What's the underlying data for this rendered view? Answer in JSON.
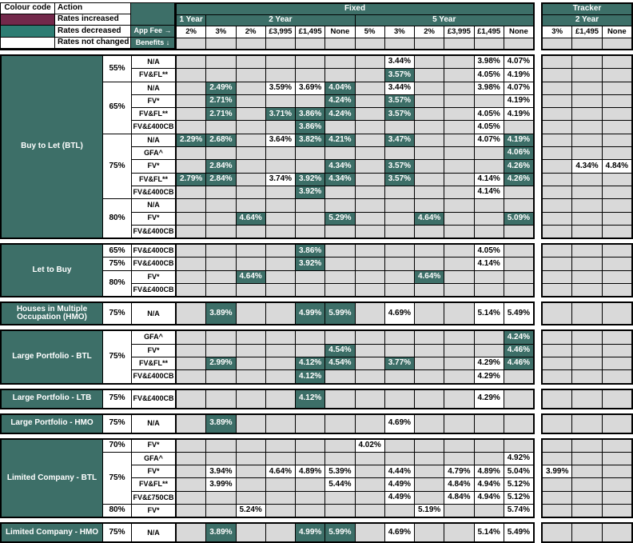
{
  "colors": {
    "increased": "#73294B",
    "decreased_swatch": "#2E7D73",
    "cell_decreased": "#3D6F68",
    "header_teal": "#3D6F68",
    "empty": "#D9D9D9",
    "not_changed": "#FFFFFF",
    "border": "#000000"
  },
  "legend": {
    "col1_header": "Colour code",
    "col2_header": "Action",
    "rows": [
      {
        "swatch": "increased",
        "label": "Rates increased"
      },
      {
        "swatch": "decreased",
        "label": "Rates decreased"
      },
      {
        "swatch": "none",
        "label": "Rates not changed"
      }
    ]
  },
  "header": {
    "app_fee_label": "App Fee →",
    "benefits_label": "Benefits ↓",
    "fixed_label": "Fixed",
    "tracker_label": "Tracker",
    "fixed_terms": [
      {
        "label": "1 Year",
        "span": 1
      },
      {
        "label": "2 Year",
        "span": 5
      },
      {
        "label": "5 Year",
        "span": 6
      }
    ],
    "tracker_terms": [
      {
        "label": "2 Year",
        "span": 3
      }
    ],
    "fixed_fees": [
      "2%",
      "3%",
      "2%",
      "£3,995",
      "£1,495",
      "None",
      "5%",
      "3%",
      "2%",
      "£3,995",
      "£1,495",
      "None"
    ],
    "tracker_fees": [
      "3%",
      "£1,495",
      "None"
    ]
  },
  "cell_states": {
    "d": "rate decreased",
    "n": "rate not changed"
  },
  "sections": [
    {
      "label": "Buy to Let (BTL)",
      "ltv_groups": [
        {
          "ltv": "55%",
          "rows": [
            {
              "benefit": "N/A",
              "cells": [
                [
                  8,
                  "3.44%",
                  "n"
                ],
                [
                  11,
                  "3.98%",
                  "n"
                ],
                [
                  12,
                  "4.07%",
                  "n"
                ]
              ]
            },
            {
              "benefit": "FV&FL**",
              "cells": [
                [
                  8,
                  "3.57%",
                  "d"
                ],
                [
                  11,
                  "4.05%",
                  "n"
                ],
                [
                  12,
                  "4.19%",
                  "n"
                ]
              ]
            }
          ]
        },
        {
          "ltv": "65%",
          "rows": [
            {
              "benefit": "N/A",
              "cells": [
                [
                  2,
                  "2.49%",
                  "d"
                ],
                [
                  4,
                  "3.59%",
                  "n"
                ],
                [
                  5,
                  "3.69%",
                  "n"
                ],
                [
                  6,
                  "4.04%",
                  "d"
                ],
                [
                  8,
                  "3.44%",
                  "n"
                ],
                [
                  11,
                  "3.98%",
                  "n"
                ],
                [
                  12,
                  "4.07%",
                  "n"
                ]
              ]
            },
            {
              "benefit": "FV*",
              "cells": [
                [
                  2,
                  "2.71%",
                  "d"
                ],
                [
                  6,
                  "4.24%",
                  "d"
                ],
                [
                  8,
                  "3.57%",
                  "d"
                ],
                [
                  12,
                  "4.19%",
                  "n"
                ]
              ]
            },
            {
              "benefit": "FV&FL**",
              "cells": [
                [
                  2,
                  "2.71%",
                  "d"
                ],
                [
                  4,
                  "3.71%",
                  "d"
                ],
                [
                  5,
                  "3.86%",
                  "d"
                ],
                [
                  6,
                  "4.24%",
                  "d"
                ],
                [
                  8,
                  "3.57%",
                  "d"
                ],
                [
                  11,
                  "4.05%",
                  "n"
                ],
                [
                  12,
                  "4.19%",
                  "n"
                ]
              ]
            },
            {
              "benefit": "FV&£400CB",
              "cells": [
                [
                  5,
                  "3.86%",
                  "d"
                ],
                [
                  11,
                  "4.05%",
                  "n"
                ]
              ]
            }
          ]
        },
        {
          "ltv": "75%",
          "rows": [
            {
              "benefit": "N/A",
              "cells": [
                [
                  1,
                  "2.29%",
                  "d"
                ],
                [
                  2,
                  "2.68%",
                  "d"
                ],
                [
                  4,
                  "3.64%",
                  "n"
                ],
                [
                  5,
                  "3.82%",
                  "d"
                ],
                [
                  6,
                  "4.21%",
                  "d"
                ],
                [
                  8,
                  "3.47%",
                  "d"
                ],
                [
                  11,
                  "4.07%",
                  "n"
                ],
                [
                  12,
                  "4.19%",
                  "d"
                ]
              ]
            },
            {
              "benefit": "GFA^",
              "cells": [
                [
                  12,
                  "4.06%",
                  "d"
                ]
              ]
            },
            {
              "benefit": "FV*",
              "cells": [
                [
                  2,
                  "2.84%",
                  "d"
                ],
                [
                  6,
                  "4.34%",
                  "d"
                ],
                [
                  8,
                  "3.57%",
                  "d"
                ],
                [
                  12,
                  "4.26%",
                  "d"
                ],
                [
                  14,
                  "4.34%",
                  "n"
                ],
                [
                  15,
                  "4.84%",
                  "n"
                ]
              ]
            },
            {
              "benefit": "FV&FL**",
              "cells": [
                [
                  1,
                  "2.79%",
                  "d"
                ],
                [
                  2,
                  "2.84%",
                  "d"
                ],
                [
                  4,
                  "3.74%",
                  "n"
                ],
                [
                  5,
                  "3.92%",
                  "d"
                ],
                [
                  6,
                  "4.34%",
                  "d"
                ],
                [
                  8,
                  "3.57%",
                  "d"
                ],
                [
                  11,
                  "4.14%",
                  "n"
                ],
                [
                  12,
                  "4.26%",
                  "d"
                ]
              ]
            },
            {
              "benefit": "FV&£400CB",
              "cells": [
                [
                  5,
                  "3.92%",
                  "d"
                ],
                [
                  11,
                  "4.14%",
                  "n"
                ]
              ]
            }
          ]
        },
        {
          "ltv": "80%",
          "rows": [
            {
              "benefit": "N/A",
              "cells": []
            },
            {
              "benefit": "FV*",
              "cells": [
                [
                  3,
                  "4.64%",
                  "d"
                ],
                [
                  6,
                  "5.29%",
                  "d"
                ],
                [
                  9,
                  "4.64%",
                  "d"
                ],
                [
                  12,
                  "5.09%",
                  "d"
                ]
              ]
            },
            {
              "benefit": "FV&£400CB",
              "cells": []
            }
          ]
        }
      ]
    },
    {
      "label": "Let to Buy",
      "ltv_groups": [
        {
          "ltv": "65%",
          "rows": [
            {
              "benefit": "FV&£400CB",
              "cells": [
                [
                  5,
                  "3.86%",
                  "d"
                ],
                [
                  11,
                  "4.05%",
                  "n"
                ]
              ]
            }
          ]
        },
        {
          "ltv": "75%",
          "rows": [
            {
              "benefit": "FV&£400CB",
              "cells": [
                [
                  5,
                  "3.92%",
                  "d"
                ],
                [
                  11,
                  "4.14%",
                  "n"
                ]
              ]
            }
          ]
        },
        {
          "ltv": "80%",
          "rows": [
            {
              "benefit": "FV*",
              "cells": [
                [
                  3,
                  "4.64%",
                  "d"
                ],
                [
                  9,
                  "4.64%",
                  "d"
                ]
              ]
            },
            {
              "benefit": "FV&£400CB",
              "cells": []
            }
          ]
        }
      ]
    },
    {
      "label": "Houses in Multiple Occupation (HMO)",
      "tall_row": true,
      "ltv_groups": [
        {
          "ltv": "75%",
          "rows": [
            {
              "benefit": "N/A",
              "cells": [
                [
                  2,
                  "3.89%",
                  "d"
                ],
                [
                  5,
                  "4.99%",
                  "d"
                ],
                [
                  6,
                  "5.99%",
                  "d"
                ],
                [
                  8,
                  "4.69%",
                  "n"
                ],
                [
                  11,
                  "5.14%",
                  "n"
                ],
                [
                  12,
                  "5.49%",
                  "n"
                ]
              ]
            }
          ]
        }
      ]
    },
    {
      "label": "Large Portfolio - BTL",
      "ltv_groups": [
        {
          "ltv": "75%",
          "rows": [
            {
              "benefit": "GFA^",
              "cells": [
                [
                  12,
                  "4.24%",
                  "d"
                ]
              ]
            },
            {
              "benefit": "FV*",
              "cells": [
                [
                  6,
                  "4.54%",
                  "d"
                ],
                [
                  12,
                  "4.46%",
                  "d"
                ]
              ]
            },
            {
              "benefit": "FV&FL**",
              "cells": [
                [
                  2,
                  "2.99%",
                  "d"
                ],
                [
                  5,
                  "4.12%",
                  "d"
                ],
                [
                  6,
                  "4.54%",
                  "d"
                ],
                [
                  8,
                  "3.77%",
                  "d"
                ],
                [
                  11,
                  "4.29%",
                  "n"
                ],
                [
                  12,
                  "4.46%",
                  "d"
                ]
              ]
            },
            {
              "benefit": "FV&£400CB",
              "cells": [
                [
                  5,
                  "4.12%",
                  "d"
                ],
                [
                  11,
                  "4.29%",
                  "n"
                ]
              ]
            }
          ]
        }
      ]
    },
    {
      "label": "Large Portfolio - LTB",
      "ltv_groups": [
        {
          "ltv": "75%",
          "rows": [
            {
              "benefit": "FV&£400CB",
              "cells": [
                [
                  5,
                  "4.12%",
                  "d"
                ],
                [
                  11,
                  "4.29%",
                  "n"
                ]
              ]
            }
          ]
        }
      ]
    },
    {
      "label": "Large Portfolio - HMO",
      "ltv_groups": [
        {
          "ltv": "75%",
          "rows": [
            {
              "benefit": "N/A",
              "cells": [
                [
                  2,
                  "3.89%",
                  "d"
                ],
                [
                  8,
                  "4.69%",
                  "n"
                ]
              ]
            }
          ]
        }
      ]
    },
    {
      "label": "Limited Company - BTL",
      "ltv_groups": [
        {
          "ltv": "70%",
          "rows": [
            {
              "benefit": "FV*",
              "cells": [
                [
                  7,
                  "4.02%",
                  "n"
                ]
              ]
            }
          ]
        },
        {
          "ltv": "75%",
          "rows": [
            {
              "benefit": "GFA^",
              "cells": [
                [
                  12,
                  "4.92%",
                  "n"
                ]
              ]
            },
            {
              "benefit": "FV*",
              "cells": [
                [
                  2,
                  "3.94%",
                  "n"
                ],
                [
                  4,
                  "4.64%",
                  "n"
                ],
                [
                  5,
                  "4.89%",
                  "n"
                ],
                [
                  6,
                  "5.39%",
                  "n"
                ],
                [
                  8,
                  "4.44%",
                  "n"
                ],
                [
                  10,
                  "4.79%",
                  "n"
                ],
                [
                  11,
                  "4.89%",
                  "n"
                ],
                [
                  12,
                  "5.04%",
                  "n"
                ],
                [
                  13,
                  "3.99%",
                  "n"
                ]
              ]
            },
            {
              "benefit": "FV&FL**",
              "cells": [
                [
                  2,
                  "3.99%",
                  "n"
                ],
                [
                  6,
                  "5.44%",
                  "n"
                ],
                [
                  8,
                  "4.49%",
                  "n"
                ],
                [
                  10,
                  "4.84%",
                  "n"
                ],
                [
                  11,
                  "4.94%",
                  "n"
                ],
                [
                  12,
                  "5.12%",
                  "n"
                ]
              ]
            },
            {
              "benefit": "FV&£750CB",
              "cells": [
                [
                  8,
                  "4.49%",
                  "n"
                ],
                [
                  10,
                  "4.84%",
                  "n"
                ],
                [
                  11,
                  "4.94%",
                  "n"
                ],
                [
                  12,
                  "5.12%",
                  "n"
                ]
              ]
            }
          ]
        },
        {
          "ltv": "80%",
          "rows": [
            {
              "benefit": "FV*",
              "cells": [
                [
                  3,
                  "5.24%",
                  "n"
                ],
                [
                  9,
                  "5.19%",
                  "n"
                ],
                [
                  12,
                  "5.74%",
                  "n"
                ]
              ]
            }
          ]
        }
      ]
    },
    {
      "label": "Limited Company - HMO",
      "ltv_groups": [
        {
          "ltv": "75%",
          "rows": [
            {
              "benefit": "N/A",
              "cells": [
                [
                  2,
                  "3.89%",
                  "d"
                ],
                [
                  5,
                  "4.99%",
                  "d"
                ],
                [
                  6,
                  "5.99%",
                  "d"
                ],
                [
                  8,
                  "4.69%",
                  "n"
                ],
                [
                  11,
                  "5.14%",
                  "n"
                ],
                [
                  12,
                  "5.49%",
                  "n"
                ]
              ]
            }
          ]
        }
      ]
    }
  ]
}
